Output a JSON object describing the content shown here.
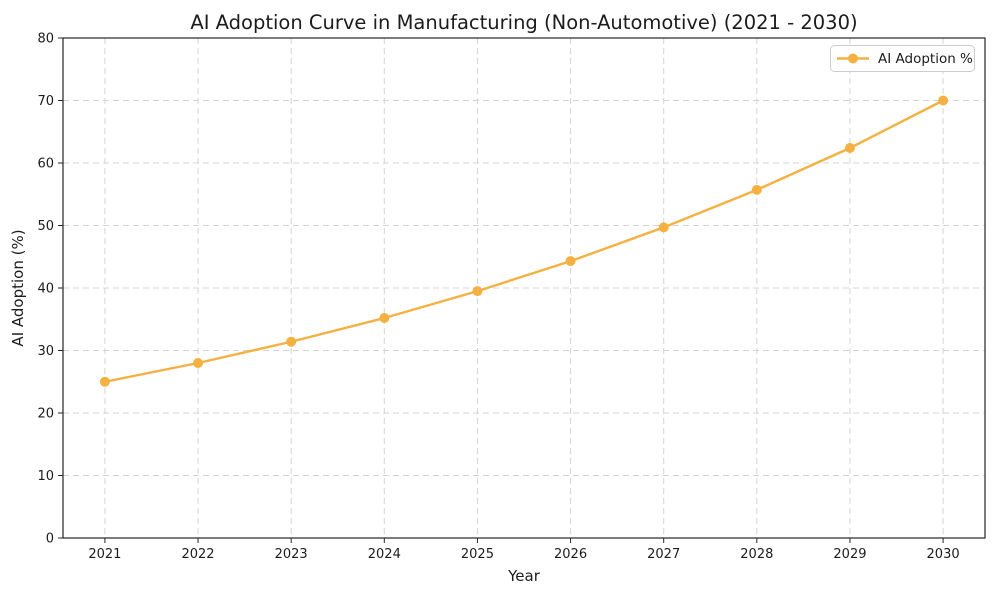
{
  "chart_data": {
    "type": "line",
    "title": "AI Adoption Curve in Manufacturing (Non-Automotive) (2021 - 2030)",
    "xlabel": "Year",
    "ylabel": "AI Adoption (%)",
    "x": [
      2021,
      2022,
      2023,
      2024,
      2025,
      2026,
      2027,
      2028,
      2029,
      2030
    ],
    "series": [
      {
        "name": "AI Adoption %",
        "color": "#F5B042",
        "marker": "circle",
        "values": [
          25.0,
          28.0,
          31.4,
          35.2,
          39.5,
          44.3,
          49.7,
          55.7,
          62.4,
          70.0
        ]
      }
    ],
    "ylim": [
      0,
      80
    ],
    "yticks": [
      0,
      10,
      20,
      30,
      40,
      50,
      60,
      70,
      80
    ],
    "grid": true,
    "grid_line_style": "dashed",
    "legend_position": "upper-right"
  },
  "style": {
    "accent_color": "#F5B042",
    "grid_color": "#d4d4d4",
    "axis_color": "#262626",
    "text_color": "#1c1c1c",
    "legend_border_color": "#cccccc",
    "background": "#ffffff"
  }
}
